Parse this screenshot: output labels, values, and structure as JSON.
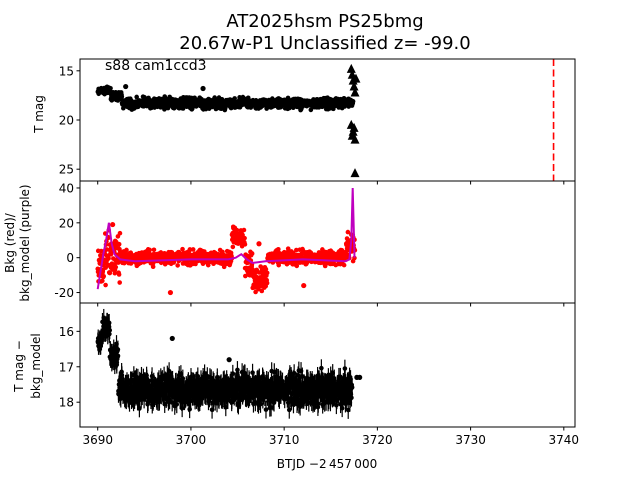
{
  "figure": {
    "title_line1": "AT2025hsm  PS25bmg",
    "title_line2": "20.67w-P1 Unclassified z= -99.0",
    "xlabel": "BTJD −2 457 000"
  },
  "colors": {
    "black": "#000000",
    "red": "#ff0000",
    "purple": "#bf00bf",
    "dashed_line": "#ff0000"
  },
  "chart_data": [
    {
      "type": "scatter",
      "name": "T mag panel",
      "annotation": "s88 cam1ccd3",
      "ylabel": "T mag",
      "y_inverted": true,
      "xlim": [
        3688.1,
        3741.2
      ],
      "ylim": [
        26.2,
        13.8
      ],
      "x_ticks": [
        3690,
        3700,
        3710,
        3720,
        3730,
        3740
      ],
      "y_ticks": [
        15,
        20,
        25
      ],
      "series": [
        {
          "marker": "point",
          "color": "#000000",
          "segments": [
            {
              "x_start": 3690.0,
              "x_end": 3691.4,
              "y_center": 17.0,
              "y_spread": 0.5
            },
            {
              "x_start": 3691.4,
              "x_end": 3692.6,
              "y_center": 17.6,
              "y_spread": 0.6
            },
            {
              "x_start": 3692.6,
              "x_end": 3705.2,
              "y_center": 18.3,
              "y_spread": 0.8
            },
            {
              "x_start": 3705.2,
              "x_end": 3706.2,
              "y_center": 18.1,
              "y_spread": 0.8
            },
            {
              "x_start": 3706.2,
              "x_end": 3717.4,
              "y_center": 18.3,
              "y_spread": 0.8
            }
          ],
          "outliers": [
            {
              "x": 3693.0,
              "y": 16.6
            },
            {
              "x": 3701.3,
              "y": 16.8
            }
          ]
        },
        {
          "marker": "triangle-up",
          "color": "#000000",
          "description": "upper limits",
          "points": [
            {
              "x": 3717.2,
              "y": 14.8
            },
            {
              "x": 3717.3,
              "y": 15.4
            },
            {
              "x": 3717.4,
              "y": 16.0
            },
            {
              "x": 3717.5,
              "y": 16.6
            },
            {
              "x": 3717.6,
              "y": 17.2
            },
            {
              "x": 3717.7,
              "y": 15.8
            },
            {
              "x": 3717.2,
              "y": 20.5
            },
            {
              "x": 3717.4,
              "y": 21.2
            },
            {
              "x": 3717.6,
              "y": 22.0
            },
            {
              "x": 3717.3,
              "y": 21.6
            },
            {
              "x": 3717.5,
              "y": 20.8
            },
            {
              "x": 3717.6,
              "y": 25.4
            }
          ]
        }
      ],
      "vertical_line": {
        "x": 3738.9,
        "style": "dashed",
        "color": "#ff0000"
      }
    },
    {
      "type": "scatter",
      "name": "background panel",
      "ylabel_line1": "Bkg (red)/",
      "ylabel_line2": "bkg_model (purple)",
      "xlim": [
        3688.1,
        3741.2
      ],
      "ylim": [
        -26,
        44
      ],
      "x_ticks": [
        3690,
        3700,
        3710,
        3720,
        3730,
        3740
      ],
      "y_ticks": [
        -20,
        0,
        20,
        40
      ],
      "series": [
        {
          "name": "Bkg",
          "color": "#ff0000",
          "segments": [
            {
              "x_start": 3690.0,
              "x_end": 3690.8,
              "y_center": -4,
              "y_spread": 18
            },
            {
              "x_start": 3690.8,
              "x_end": 3692.4,
              "y_center": 0,
              "y_spread": 22
            },
            {
              "x_start": 3692.4,
              "x_end": 3704.4,
              "y_center": 0,
              "y_spread": 6
            },
            {
              "x_start": 3704.4,
              "x_end": 3705.8,
              "y_center": 12,
              "y_spread": 8
            },
            {
              "x_start": 3705.8,
              "x_end": 3706.6,
              "y_center": -4,
              "y_spread": 16
            },
            {
              "x_start": 3706.6,
              "x_end": 3708.2,
              "y_center": -12,
              "y_spread": 10
            },
            {
              "x_start": 3708.2,
              "x_end": 3716.6,
              "y_center": 0,
              "y_spread": 6
            },
            {
              "x_start": 3716.6,
              "x_end": 3717.6,
              "y_center": 6,
              "y_spread": 14
            }
          ],
          "outliers": [
            {
              "x": 3697.8,
              "y": -20
            },
            {
              "x": 3712.1,
              "y": -16
            },
            {
              "x": 3691.6,
              "y": 19
            },
            {
              "x": 3707.3,
              "y": 8
            }
          ]
        },
        {
          "name": "bkg_model",
          "color": "#bf00bf",
          "line": [
            {
              "x": 3690.0,
              "y": -18
            },
            {
              "x": 3690.3,
              "y": -8
            },
            {
              "x": 3690.6,
              "y": 2
            },
            {
              "x": 3690.9,
              "y": 10
            },
            {
              "x": 3691.2,
              "y": 20
            },
            {
              "x": 3691.5,
              "y": 8
            },
            {
              "x": 3691.8,
              "y": 2
            },
            {
              "x": 3692.4,
              "y": -1
            },
            {
              "x": 3694.0,
              "y": -2
            },
            {
              "x": 3700.0,
              "y": -1
            },
            {
              "x": 3704.0,
              "y": -1
            },
            {
              "x": 3704.8,
              "y": 0
            },
            {
              "x": 3705.4,
              "y": 2
            },
            {
              "x": 3706.0,
              "y": -1
            },
            {
              "x": 3706.6,
              "y": -3
            },
            {
              "x": 3708.0,
              "y": -2
            },
            {
              "x": 3712.0,
              "y": -1
            },
            {
              "x": 3716.6,
              "y": -2
            },
            {
              "x": 3717.0,
              "y": -1
            },
            {
              "x": 3717.2,
              "y": 10
            },
            {
              "x": 3717.35,
              "y": 40
            },
            {
              "x": 3717.45,
              "y": 20
            },
            {
              "x": 3717.55,
              "y": 0
            }
          ]
        }
      ]
    },
    {
      "type": "scatter",
      "name": "difference panel",
      "ylabel_line1": "T mag −",
      "ylabel_line2": "bkg_model",
      "y_inverted": true,
      "xlim": [
        3688.1,
        3741.2
      ],
      "ylim": [
        18.7,
        15.2
      ],
      "x_ticks": [
        3690,
        3700,
        3710,
        3720,
        3730,
        3740
      ],
      "y_ticks": [
        16,
        17,
        18
      ],
      "series": [
        {
          "color": "#000000",
          "marker": "point-errorbar",
          "segments": [
            {
              "x_start": 3690.0,
              "x_end": 3690.5,
              "y_center": 16.3,
              "y_spread": 0.3
            },
            {
              "x_start": 3690.5,
              "x_end": 3691.3,
              "y_center": 15.9,
              "y_spread": 0.4
            },
            {
              "x_start": 3691.3,
              "x_end": 3692.2,
              "y_center": 16.7,
              "y_spread": 0.4
            },
            {
              "x_start": 3692.2,
              "x_end": 3705.2,
              "y_center": 17.65,
              "y_spread": 0.65
            },
            {
              "x_start": 3705.2,
              "x_end": 3706.2,
              "y_center": 17.6,
              "y_spread": 0.6
            },
            {
              "x_start": 3706.2,
              "x_end": 3717.3,
              "y_center": 17.65,
              "y_spread": 0.65
            }
          ],
          "outliers": [
            {
              "x": 3698.0,
              "y": 16.2
            },
            {
              "x": 3704.1,
              "y": 16.8
            },
            {
              "x": 3717.8,
              "y": 17.3
            },
            {
              "x": 3718.1,
              "y": 17.3
            }
          ]
        }
      ]
    }
  ]
}
